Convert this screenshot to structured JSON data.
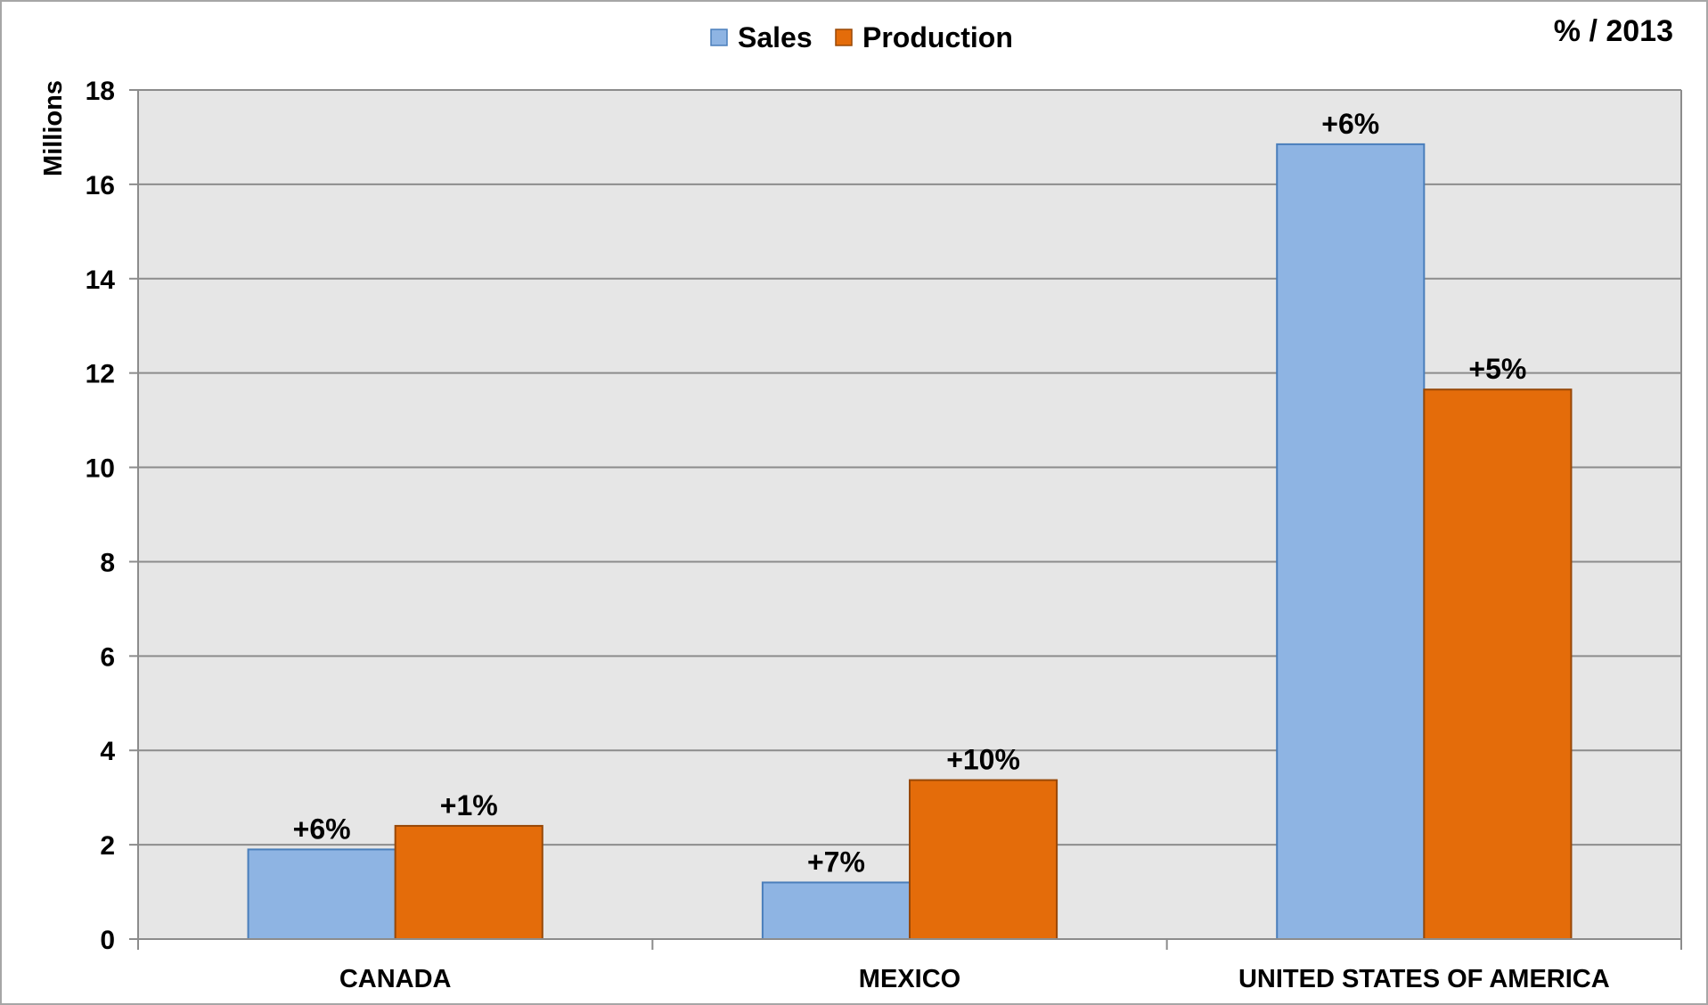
{
  "chart_data": {
    "type": "bar",
    "title": "",
    "note": "% / 2013",
    "ylabel": "Millions",
    "xlabel": "",
    "ylim": [
      0,
      18
    ],
    "yticks": [
      "0",
      "2",
      "4",
      "6",
      "8",
      "10",
      "12",
      "14",
      "16",
      "18"
    ],
    "grid": true,
    "legend_position": "top-center",
    "categories": [
      "CANADA",
      "MEXICO",
      "UNITED STATES OF AMERICA"
    ],
    "series": [
      {
        "name": "Sales",
        "color": "#8eb4e3",
        "border": "#4a7ebb",
        "values": [
          1.9,
          1.2,
          16.85
        ],
        "labels": [
          "+6%",
          "+7%",
          "+6%"
        ]
      },
      {
        "name": "Production",
        "color": "#e46c0a",
        "border": "#984807",
        "values": [
          2.4,
          3.37,
          11.65
        ],
        "labels": [
          "+1%",
          "+10%",
          "+5%"
        ]
      }
    ],
    "plot_background": "#e6e6e6",
    "grid_color": "#8c8c8c"
  }
}
